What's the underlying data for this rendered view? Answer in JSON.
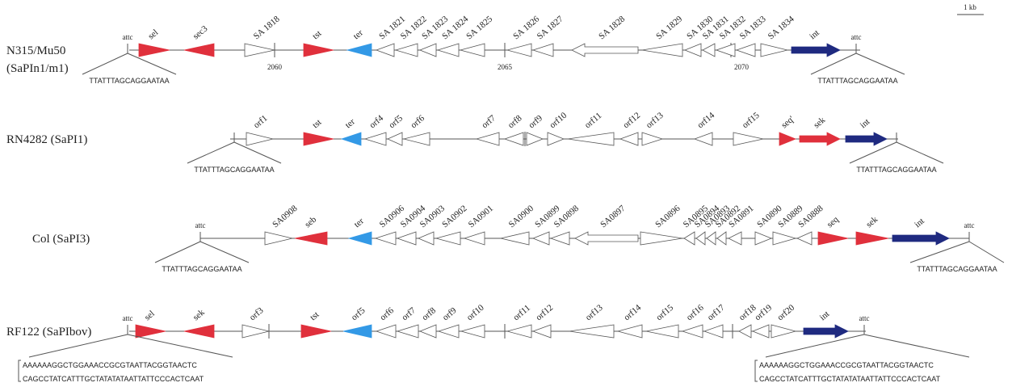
{
  "scale_bar": "1 kb",
  "tracks": [
    {
      "name": [
        "N315/Mu50",
        "(SaPIn1/m1)"
      ],
      "attc": [
        "attc",
        "attc"
      ],
      "genes": [
        "sel",
        "sec3",
        "SA 1818",
        "tst",
        "ter",
        "SA 1821",
        "SA 1822",
        "SA 1823",
        "SA 1824",
        "SA 1825",
        "SA 1826",
        "SA 1827",
        "SA 1828",
        "SA 1829",
        "SA 1830",
        "SA 1831",
        "SA 1832",
        "SA 1833",
        "SA 1834",
        "int"
      ],
      "coordinates": [
        "2060",
        "2065",
        "2070"
      ],
      "sequences": [
        [
          "TTATTTAGCAGGAATAA"
        ],
        [
          "TTATTTAGCAGGAATAA"
        ]
      ]
    },
    {
      "name": [
        "RN4282 (SaPI1)"
      ],
      "genes": [
        "orf1",
        "tst",
        "ter",
        "orf4",
        "orf5",
        "orf6",
        "orf7",
        "orf8",
        "orf9",
        "orf10",
        "orf11",
        "orf12",
        "orf13",
        "orf14",
        "orf15",
        "seq'",
        "sek",
        "int"
      ],
      "sequences": [
        [
          "TTATTTAGCAGGAATAA"
        ],
        [
          "TTATTTAGCAGGAATAA"
        ]
      ]
    },
    {
      "name": [
        "Col (SaPI3)"
      ],
      "attc": [
        "attc",
        "attc"
      ],
      "genes": [
        "SA0908",
        "seb",
        "ter",
        "SA0906",
        "SA0904",
        "SA0903",
        "SA0902",
        "SA0901",
        "SA0900",
        "SA0899",
        "SA0898",
        "SA0897",
        "SA0896",
        "SA0895",
        "SA0894",
        "SA0893",
        "SA0892",
        "SA0891",
        "SA0890",
        "SA0889",
        "SA0888",
        "seq",
        "sek",
        "int"
      ],
      "sequences": [
        [
          "TTATTTAGCAGGAATAA"
        ],
        [
          "TTATTTAGCAGGAATAA"
        ]
      ]
    },
    {
      "name": [
        "RF122 (SaPIbov)"
      ],
      "attc": [
        "attc",
        "attc"
      ],
      "genes": [
        "sel",
        "sek",
        "orf3",
        "tst",
        "orf5",
        "orf6",
        "orf7",
        "orf8",
        "orf9",
        "orf10",
        "orf11",
        "orf12",
        "orf13",
        "orf14",
        "orf15",
        "orf16",
        "orf17",
        "orf18",
        "orf19",
        "orf20",
        "int"
      ],
      "sequences": [
        [
          "AAAAAAGGCTGGAAACCGCGTAATTACGGTAACTC",
          "CAGCCTATCATTTGCTATATATAATTATTCCCACTCAAT"
        ],
        [
          "AAAAAAGGCTGGAAACCGCGTAATTACGGTAACTC",
          "CAGCCTATCATTTGCTATATATAATTATTCCCACTCAAT"
        ]
      ]
    }
  ]
}
